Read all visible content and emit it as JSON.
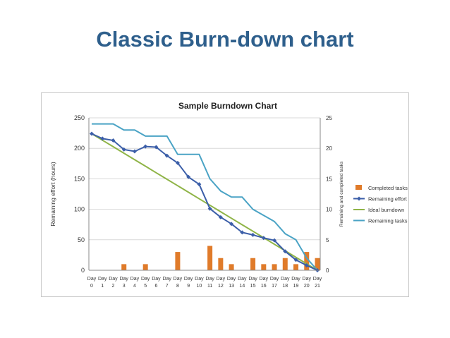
{
  "slide": {
    "title": "Classic Burn-down chart"
  },
  "chart_data": {
    "type": "bar+line",
    "title": "Sample Burndown Chart",
    "ylabel": "Remaining effort (hours)",
    "y2label": "Remaining and completed tasks",
    "ylim": [
      0,
      250
    ],
    "y2lim": [
      0,
      25
    ],
    "yticks": [
      "0",
      "50",
      "100",
      "150",
      "200",
      "250"
    ],
    "y2ticks": [
      "0",
      "5",
      "10",
      "15",
      "20",
      "25"
    ],
    "categories": [
      [
        "Day",
        "0"
      ],
      [
        "Day",
        "1"
      ],
      [
        "Day",
        "2"
      ],
      [
        "Day",
        "3"
      ],
      [
        "Day",
        "4"
      ],
      [
        "Day",
        "5"
      ],
      [
        "Day",
        "6"
      ],
      [
        "Day",
        "7"
      ],
      [
        "Day",
        "8"
      ],
      [
        "Day",
        "9"
      ],
      [
        "Day",
        "10"
      ],
      [
        "Day",
        "11"
      ],
      [
        "Day",
        "12"
      ],
      [
        "Day",
        "13"
      ],
      [
        "Day",
        "14"
      ],
      [
        "Day",
        "15"
      ],
      [
        "Day",
        "16"
      ],
      [
        "Day",
        "17"
      ],
      [
        "Day",
        "18"
      ],
      [
        "Day",
        "19"
      ],
      [
        "Day",
        "20"
      ],
      [
        "Day",
        "21"
      ]
    ],
    "legend_position": "right",
    "series": [
      {
        "name": "Completed tasks",
        "type": "bar",
        "axis": "right",
        "color": "#e07b2a",
        "values": [
          0,
          0,
          0,
          1,
          0,
          1,
          0,
          0,
          3,
          0,
          0,
          4,
          2,
          1,
          0,
          2,
          1,
          1,
          2,
          1,
          3,
          2
        ]
      },
      {
        "name": "Remaining effort",
        "type": "line",
        "axis": "left",
        "color": "#3b5ea8",
        "marker": "diamond",
        "values": [
          224,
          216,
          213,
          198,
          195,
          203,
          202,
          188,
          176,
          153,
          141,
          101,
          87,
          76,
          62,
          58,
          53,
          49,
          31,
          17,
          8,
          0
        ]
      },
      {
        "name": "Ideal burndown",
        "type": "line",
        "axis": "left",
        "color": "#8fb447",
        "values": [
          224,
          213.3,
          202.7,
          192,
          181.3,
          170.7,
          160,
          149.3,
          138.7,
          128,
          117.3,
          106.7,
          96,
          85.3,
          74.7,
          64,
          53.3,
          42.7,
          32,
          21.3,
          10.7,
          0
        ]
      },
      {
        "name": "Remaining tasks",
        "type": "line",
        "axis": "right",
        "color": "#4aa3c5",
        "values": [
          24,
          24,
          24,
          23,
          23,
          22,
          22,
          22,
          19,
          19,
          19,
          15,
          13,
          12,
          12,
          10,
          9,
          8,
          6,
          5,
          2,
          0
        ]
      }
    ]
  }
}
